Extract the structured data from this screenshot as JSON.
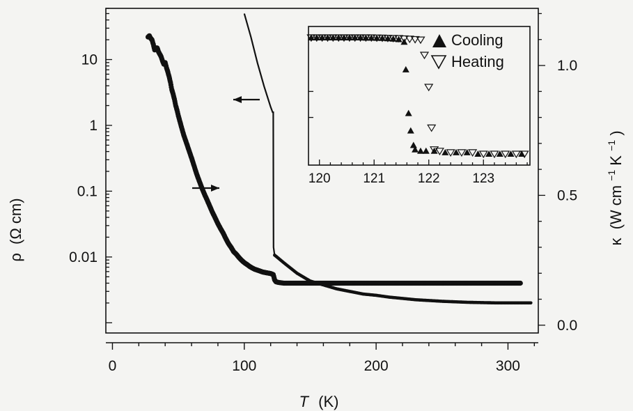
{
  "chart_data": [
    {
      "type": "scatter",
      "xlabel": {
        "symbol": "T",
        "unit": "(K)"
      },
      "ylabel_left": {
        "symbol": "ρ",
        "unit": "(Ω cm)"
      },
      "ylabel_right": {
        "symbol": "κ",
        "unit": "(W cm",
        "exp1": "−1",
        "mid": " K",
        "exp2": "−1",
        "close": ")"
      },
      "xlim": [
        -5,
        323
      ],
      "x_ticks": [
        0,
        100,
        200,
        300
      ],
      "x_tick_labels": [
        "0",
        "100",
        "200",
        "300"
      ],
      "y_left_scale": "log",
      "y_left_lim": [
        0.0007,
        60
      ],
      "y_left_ticks": [
        10,
        1,
        0.1,
        0.01
      ],
      "y_left_tick_labels": [
        "10",
        "1",
        "0.1",
        "0.01"
      ],
      "y_right_lim": [
        -0.03,
        1.22
      ],
      "y_right_ticks": [
        1.0,
        0.5,
        0.0
      ],
      "y_right_tick_labels": [
        "1.0",
        "0.5",
        "0.0"
      ],
      "series": [
        {
          "axis": "left",
          "marker": "dot",
          "points": [
            [
              27,
              22
            ],
            [
              28,
              23
            ],
            [
              29,
              21
            ],
            [
              30,
              20
            ],
            [
              31,
              17
            ],
            [
              32,
              14
            ],
            [
              33,
              15
            ],
            [
              34,
              15
            ],
            [
              35,
              13
            ],
            [
              36,
              12
            ],
            [
              37,
              11
            ],
            [
              38,
              9.5
            ],
            [
              39,
              8.5
            ],
            [
              40,
              9
            ],
            [
              41,
              7.5
            ],
            [
              42,
              6.5
            ],
            [
              43,
              5.5
            ],
            [
              44,
              4.5
            ],
            [
              45,
              3.5
            ],
            [
              46,
              3.0
            ],
            [
              47,
              2.5
            ],
            [
              48,
              2.0
            ],
            [
              49,
              1.7
            ],
            [
              50,
              1.4
            ],
            [
              52,
              1.0
            ],
            [
              54,
              0.72
            ],
            [
              56,
              0.55
            ],
            [
              58,
              0.42
            ],
            [
              60,
              0.32
            ],
            [
              62,
              0.24
            ],
            [
              64,
              0.18
            ],
            [
              66,
              0.14
            ],
            [
              68,
              0.11
            ],
            [
              70,
              0.088
            ],
            [
              72,
              0.072
            ],
            [
              74,
              0.058
            ],
            [
              76,
              0.047
            ],
            [
              78,
              0.039
            ],
            [
              80,
              0.032
            ],
            [
              82,
              0.027
            ],
            [
              84,
              0.023
            ],
            [
              86,
              0.019
            ],
            [
              88,
              0.016
            ],
            [
              90,
              0.014
            ],
            [
              92,
              0.012
            ],
            [
              94,
              0.011
            ],
            [
              96,
              0.0098
            ],
            [
              98,
              0.0089
            ],
            [
              100,
              0.0082
            ],
            [
              102,
              0.0077
            ],
            [
              104,
              0.0072
            ],
            [
              106,
              0.0068
            ],
            [
              108,
              0.0065
            ],
            [
              110,
              0.0063
            ],
            [
              112,
              0.0061
            ],
            [
              114,
              0.0059
            ],
            [
              116,
              0.0058
            ],
            [
              118,
              0.0057
            ],
            [
              120,
              0.0056
            ],
            [
              121,
              0.0055
            ],
            [
              122,
              0.0054
            ],
            [
              123,
              0.0045
            ],
            [
              124,
              0.0042
            ],
            [
              126,
              0.0041
            ],
            [
              130,
              0.004
            ],
            [
              140,
              0.004
            ],
            [
              150,
              0.004
            ],
            [
              160,
              0.004
            ],
            [
              180,
              0.004
            ],
            [
              200,
              0.004
            ],
            [
              220,
              0.004
            ],
            [
              240,
              0.004
            ],
            [
              260,
              0.004
            ],
            [
              280,
              0.004
            ],
            [
              300,
              0.004
            ],
            [
              310,
              0.004
            ]
          ]
        },
        {
          "axis": "right",
          "marker": "line",
          "points": [
            [
              100,
              1.2
            ],
            [
              105,
              1.11
            ],
            [
              110,
              1.01
            ],
            [
              115,
              0.92
            ],
            [
              120,
              0.84
            ],
            [
              121.5,
              0.82
            ],
            [
              122,
              0.82
            ],
            [
              122.1,
              0.52
            ],
            [
              122.2,
              0.3
            ],
            [
              123,
              0.27
            ],
            [
              130,
              0.24
            ],
            [
              140,
              0.2
            ],
            [
              150,
              0.17
            ],
            [
              160,
              0.155
            ],
            [
              170,
              0.14
            ],
            [
              180,
              0.13
            ],
            [
              190,
              0.12
            ],
            [
              200,
              0.115
            ],
            [
              210,
              0.108
            ],
            [
              220,
              0.103
            ],
            [
              230,
              0.098
            ],
            [
              240,
              0.095
            ],
            [
              250,
              0.092
            ],
            [
              260,
              0.09
            ],
            [
              270,
              0.088
            ],
            [
              280,
              0.087
            ],
            [
              290,
              0.086
            ],
            [
              300,
              0.086
            ],
            [
              310,
              0.086
            ],
            [
              318,
              0.086
            ]
          ]
        }
      ],
      "annotations": [
        {
          "type": "arrow",
          "direction": "left",
          "points_to_axis": "left"
        },
        {
          "type": "arrow",
          "direction": "right",
          "points_to_axis": "right"
        }
      ]
    },
    {
      "type": "scatter",
      "inset": true,
      "xlim": [
        119.8,
        123.85
      ],
      "x_ticks": [
        120,
        121,
        122,
        123
      ],
      "x_tick_labels": [
        "120",
        "121",
        "122",
        "123"
      ],
      "legend": "top-right",
      "series": [
        {
          "name": "Cooling",
          "marker": "filled-triangle-up",
          "points": [
            [
              119.85,
              0.92
            ],
            [
              119.95,
              0.92
            ],
            [
              120.05,
              0.92
            ],
            [
              120.15,
              0.92
            ],
            [
              120.25,
              0.92
            ],
            [
              120.35,
              0.92
            ],
            [
              120.45,
              0.92
            ],
            [
              120.55,
              0.92
            ],
            [
              120.65,
              0.92
            ],
            [
              120.75,
              0.92
            ],
            [
              120.85,
              0.918
            ],
            [
              120.95,
              0.918
            ],
            [
              121.05,
              0.917
            ],
            [
              121.15,
              0.916
            ],
            [
              121.25,
              0.914
            ],
            [
              121.35,
              0.912
            ],
            [
              121.45,
              0.908
            ],
            [
              121.55,
              0.89
            ],
            [
              121.58,
              0.7
            ],
            [
              121.63,
              0.4
            ],
            [
              121.67,
              0.28
            ],
            [
              121.72,
              0.18
            ],
            [
              121.75,
              0.15
            ],
            [
              121.85,
              0.14
            ],
            [
              121.95,
              0.14
            ],
            [
              122.1,
              0.14
            ],
            [
              122.3,
              0.13
            ],
            [
              122.5,
              0.13
            ],
            [
              122.7,
              0.13
            ],
            [
              122.9,
              0.12
            ],
            [
              123.1,
              0.12
            ],
            [
              123.3,
              0.12
            ],
            [
              123.5,
              0.12
            ],
            [
              123.7,
              0.12
            ]
          ]
        },
        {
          "name": "Heating",
          "marker": "open-triangle-down",
          "points": [
            [
              119.85,
              0.92
            ],
            [
              119.95,
              0.92
            ],
            [
              120.05,
              0.92
            ],
            [
              120.15,
              0.92
            ],
            [
              120.25,
              0.92
            ],
            [
              120.35,
              0.92
            ],
            [
              120.45,
              0.92
            ],
            [
              120.55,
              0.92
            ],
            [
              120.65,
              0.92
            ],
            [
              120.75,
              0.92
            ],
            [
              120.85,
              0.92
            ],
            [
              120.95,
              0.92
            ],
            [
              121.05,
              0.919
            ],
            [
              121.15,
              0.918
            ],
            [
              121.25,
              0.917
            ],
            [
              121.35,
              0.916
            ],
            [
              121.45,
              0.915
            ],
            [
              121.55,
              0.913
            ],
            [
              121.65,
              0.911
            ],
            [
              121.75,
              0.908
            ],
            [
              121.85,
              0.905
            ],
            [
              121.92,
              0.8
            ],
            [
              122.0,
              0.58
            ],
            [
              122.05,
              0.3
            ],
            [
              122.1,
              0.15
            ],
            [
              122.2,
              0.14
            ],
            [
              122.4,
              0.13
            ],
            [
              122.6,
              0.13
            ],
            [
              122.8,
              0.13
            ],
            [
              123.0,
              0.12
            ],
            [
              123.2,
              0.12
            ],
            [
              123.4,
              0.12
            ],
            [
              123.6,
              0.12
            ],
            [
              123.75,
              0.12
            ]
          ]
        }
      ]
    }
  ]
}
